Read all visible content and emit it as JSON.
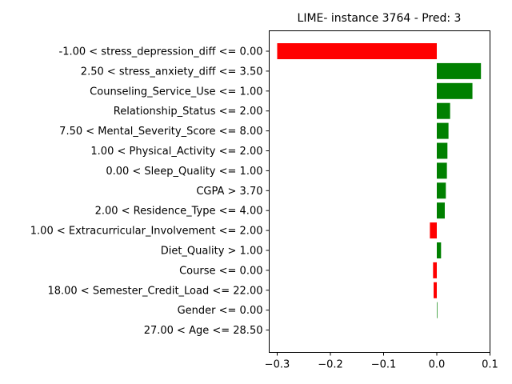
{
  "chart_data": {
    "type": "bar",
    "orientation": "horizontal",
    "title": "LIME- instance 3764 - Pred: 3",
    "xlabel": "",
    "ylabel": "",
    "xlim": [
      -0.315,
      0.1
    ],
    "xticks": [
      -0.3,
      -0.2,
      -0.1,
      0.0,
      0.1
    ],
    "xtick_labels": [
      "−0.3",
      "−0.2",
      "−0.1",
      "0.0",
      "0.1"
    ],
    "grid": false,
    "colors": {
      "positive": "#008000",
      "negative": "#ff0000"
    },
    "categories": [
      "-1.00 < stress_depression_diff <= 0.00",
      "2.50 < stress_anxiety_diff <= 3.50",
      "Counseling_Service_Use <= 1.00",
      "Relationship_Status <= 2.00",
      "7.50 < Mental_Severity_Score <= 8.00",
      "1.00 < Physical_Activity <= 2.00",
      "0.00 < Sleep_Quality <= 1.00",
      "CGPA > 3.70",
      "2.00 < Residence_Type <= 4.00",
      "1.00 < Extracurricular_Involvement <= 2.00",
      "Diet_Quality > 1.00",
      "Course <= 0.00",
      "18.00 < Semester_Credit_Load <= 22.00",
      "Gender <= 0.00",
      "27.00 < Age <= 28.50"
    ],
    "values": [
      -0.3,
      0.083,
      0.067,
      0.025,
      0.022,
      0.02,
      0.019,
      0.017,
      0.015,
      -0.013,
      0.008,
      -0.007,
      -0.006,
      0.001,
      0.0
    ]
  }
}
